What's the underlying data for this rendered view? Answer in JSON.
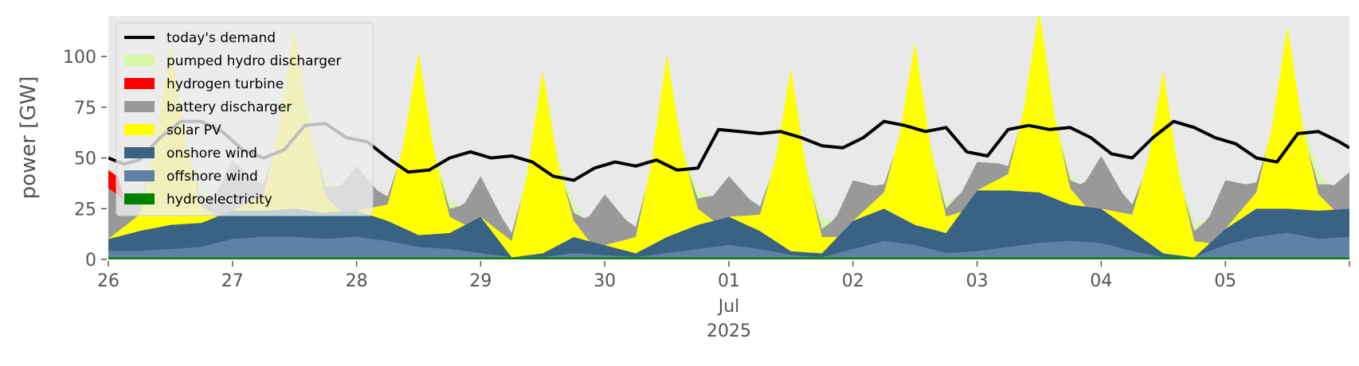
{
  "chart_data": {
    "type": "area",
    "ylabel": "power [GW]",
    "xlabel": "",
    "ylim": [
      0,
      120
    ],
    "xlim": [
      "2025-06-26T00:00",
      "2025-07-06T00:00"
    ],
    "y_ticks": [
      0,
      25,
      50,
      75,
      100
    ],
    "x_ticks": [
      {
        "label": "26",
        "x": "2025-06-26T00:00"
      },
      {
        "label": "27",
        "x": "2025-06-27T00:00"
      },
      {
        "label": "28",
        "x": "2025-06-28T00:00"
      },
      {
        "label": "29",
        "x": "2025-06-29T00:00"
      },
      {
        "label": "30",
        "x": "2025-06-30T00:00"
      },
      {
        "label": "01",
        "x": "2025-07-01T00:00"
      },
      {
        "label": "02",
        "x": "2025-07-02T00:00"
      },
      {
        "label": "03",
        "x": "2025-07-03T00:00"
      },
      {
        "label": "04",
        "x": "2025-07-04T00:00"
      },
      {
        "label": "05",
        "x": "2025-07-05T00:00"
      }
    ],
    "x_sublabels": [
      "Jul",
      "2025"
    ],
    "grid": false,
    "background": "#e9e9e9",
    "legend_position": "top-left",
    "series": [
      {
        "name": "hydroelectricity",
        "color": "#008000",
        "values": [
          [
            0,
            1
          ],
          [
            24,
            1
          ],
          [
            48,
            1
          ],
          [
            72,
            1
          ],
          [
            96,
            1
          ],
          [
            120,
            1
          ],
          [
            144,
            1
          ],
          [
            168,
            1
          ],
          [
            192,
            1
          ],
          [
            216,
            1
          ],
          [
            240,
            1
          ]
        ]
      },
      {
        "name": "offshore wind",
        "color": "#6081a6",
        "values": [
          [
            0,
            3
          ],
          [
            6,
            3
          ],
          [
            12,
            4
          ],
          [
            18,
            5
          ],
          [
            24,
            9
          ],
          [
            30,
            10
          ],
          [
            36,
            10
          ],
          [
            42,
            9
          ],
          [
            48,
            10
          ],
          [
            54,
            8
          ],
          [
            60,
            5
          ],
          [
            66,
            4
          ],
          [
            72,
            2
          ],
          [
            78,
            0
          ],
          [
            84,
            0
          ],
          [
            90,
            2
          ],
          [
            96,
            1
          ],
          [
            102,
            0
          ],
          [
            108,
            2
          ],
          [
            114,
            4
          ],
          [
            120,
            6
          ],
          [
            126,
            4
          ],
          [
            132,
            1
          ],
          [
            138,
            0
          ],
          [
            144,
            4
          ],
          [
            150,
            8
          ],
          [
            156,
            6
          ],
          [
            162,
            2
          ],
          [
            168,
            3
          ],
          [
            174,
            5
          ],
          [
            180,
            7
          ],
          [
            186,
            8
          ],
          [
            192,
            7
          ],
          [
            198,
            3
          ],
          [
            204,
            0
          ],
          [
            210,
            0
          ],
          [
            216,
            6
          ],
          [
            222,
            10
          ],
          [
            228,
            12
          ],
          [
            234,
            9
          ],
          [
            240,
            10
          ]
        ]
      },
      {
        "name": "onshore wind",
        "color": "#3a6282",
        "values": [
          [
            0,
            6
          ],
          [
            6,
            10
          ],
          [
            12,
            12
          ],
          [
            18,
            12
          ],
          [
            24,
            14
          ],
          [
            30,
            13
          ],
          [
            36,
            14
          ],
          [
            42,
            13
          ],
          [
            48,
            13
          ],
          [
            54,
            10
          ],
          [
            60,
            6
          ],
          [
            66,
            8
          ],
          [
            72,
            18
          ],
          [
            78,
            0
          ],
          [
            84,
            2
          ],
          [
            90,
            8
          ],
          [
            96,
            5
          ],
          [
            102,
            2
          ],
          [
            108,
            8
          ],
          [
            114,
            12
          ],
          [
            120,
            14
          ],
          [
            126,
            9
          ],
          [
            132,
            2
          ],
          [
            138,
            2
          ],
          [
            144,
            14
          ],
          [
            150,
            16
          ],
          [
            156,
            10
          ],
          [
            162,
            10
          ],
          [
            168,
            30
          ],
          [
            174,
            28
          ],
          [
            180,
            25
          ],
          [
            186,
            18
          ],
          [
            192,
            17
          ],
          [
            198,
            10
          ],
          [
            204,
            2
          ],
          [
            210,
            0
          ],
          [
            216,
            8
          ],
          [
            222,
            14
          ],
          [
            228,
            12
          ],
          [
            234,
            14
          ],
          [
            240,
            14
          ]
        ]
      },
      {
        "name": "solar PV",
        "color": "#ffff00",
        "values": [
          [
            0,
            0
          ],
          [
            6,
            8
          ],
          [
            9,
            40
          ],
          [
            12,
            90
          ],
          [
            15,
            40
          ],
          [
            18,
            8
          ],
          [
            21,
            0
          ],
          [
            24,
            0
          ],
          [
            30,
            8
          ],
          [
            33,
            40
          ],
          [
            36,
            90
          ],
          [
            39,
            40
          ],
          [
            42,
            8
          ],
          [
            45,
            0
          ],
          [
            48,
            0
          ],
          [
            54,
            8
          ],
          [
            57,
            40
          ],
          [
            60,
            90
          ],
          [
            63,
            40
          ],
          [
            66,
            8
          ],
          [
            69,
            0
          ],
          [
            72,
            0
          ],
          [
            78,
            8
          ],
          [
            81,
            40
          ],
          [
            84,
            90
          ],
          [
            87,
            40
          ],
          [
            90,
            8
          ],
          [
            93,
            0
          ],
          [
            96,
            0
          ],
          [
            102,
            8
          ],
          [
            105,
            40
          ],
          [
            108,
            90
          ],
          [
            111,
            40
          ],
          [
            114,
            8
          ],
          [
            117,
            0
          ],
          [
            120,
            0
          ],
          [
            126,
            8
          ],
          [
            129,
            40
          ],
          [
            132,
            90
          ],
          [
            135,
            40
          ],
          [
            138,
            8
          ],
          [
            141,
            0
          ],
          [
            144,
            0
          ],
          [
            150,
            8
          ],
          [
            153,
            40
          ],
          [
            156,
            90
          ],
          [
            159,
            40
          ],
          [
            162,
            8
          ],
          [
            165,
            0
          ],
          [
            168,
            0
          ],
          [
            174,
            8
          ],
          [
            177,
            40
          ],
          [
            180,
            90
          ],
          [
            183,
            40
          ],
          [
            186,
            8
          ],
          [
            189,
            0
          ],
          [
            192,
            0
          ],
          [
            198,
            8
          ],
          [
            201,
            40
          ],
          [
            204,
            90
          ],
          [
            207,
            40
          ],
          [
            210,
            8
          ],
          [
            213,
            0
          ],
          [
            216,
            0
          ],
          [
            222,
            8
          ],
          [
            225,
            40
          ],
          [
            228,
            90
          ],
          [
            231,
            40
          ],
          [
            234,
            8
          ],
          [
            237,
            0
          ],
          [
            240,
            0
          ]
        ]
      },
      {
        "name": "battery discharger",
        "color": "#999999",
        "values": [
          [
            0,
            25
          ],
          [
            4,
            10
          ],
          [
            8,
            0
          ],
          [
            16,
            0
          ],
          [
            20,
            8
          ],
          [
            24,
            25
          ],
          [
            28,
            10
          ],
          [
            32,
            0
          ],
          [
            40,
            0
          ],
          [
            44,
            10
          ],
          [
            48,
            22
          ],
          [
            52,
            8
          ],
          [
            56,
            0
          ],
          [
            64,
            0
          ],
          [
            68,
            8
          ],
          [
            72,
            20
          ],
          [
            76,
            8
          ],
          [
            80,
            0
          ],
          [
            88,
            0
          ],
          [
            92,
            8
          ],
          [
            96,
            25
          ],
          [
            100,
            10
          ],
          [
            104,
            0
          ],
          [
            112,
            0
          ],
          [
            116,
            10
          ],
          [
            120,
            20
          ],
          [
            124,
            8
          ],
          [
            128,
            0
          ],
          [
            136,
            0
          ],
          [
            140,
            8
          ],
          [
            144,
            20
          ],
          [
            148,
            8
          ],
          [
            152,
            0
          ],
          [
            160,
            0
          ],
          [
            164,
            8
          ],
          [
            168,
            14
          ],
          [
            172,
            8
          ],
          [
            176,
            0
          ],
          [
            184,
            0
          ],
          [
            188,
            8
          ],
          [
            192,
            26
          ],
          [
            196,
            10
          ],
          [
            200,
            0
          ],
          [
            208,
            0
          ],
          [
            212,
            10
          ],
          [
            216,
            24
          ],
          [
            220,
            10
          ],
          [
            224,
            0
          ],
          [
            232,
            0
          ],
          [
            236,
            10
          ],
          [
            240,
            18
          ]
        ]
      },
      {
        "name": "hydrogen turbine",
        "color": "#ff0000",
        "values": [
          [
            0,
            9
          ],
          [
            2,
            9
          ],
          [
            3,
            0
          ],
          [
            240,
            0
          ]
        ]
      },
      {
        "name": "pumped hydro discharger",
        "color": "#d8f7a8",
        "values": [
          [
            0,
            0
          ],
          [
            14,
            0
          ],
          [
            16,
            5
          ],
          [
            18,
            5
          ],
          [
            20,
            0
          ],
          [
            38,
            0
          ],
          [
            40,
            5
          ],
          [
            42,
            5
          ],
          [
            44,
            0
          ],
          [
            62,
            0
          ],
          [
            64,
            4
          ],
          [
            66,
            4
          ],
          [
            68,
            0
          ],
          [
            86,
            0
          ],
          [
            88,
            5
          ],
          [
            90,
            5
          ],
          [
            92,
            0
          ],
          [
            110,
            0
          ],
          [
            112,
            4
          ],
          [
            114,
            4
          ],
          [
            116,
            0
          ],
          [
            134,
            0
          ],
          [
            136,
            5
          ],
          [
            138,
            5
          ],
          [
            140,
            0
          ],
          [
            158,
            0
          ],
          [
            160,
            3
          ],
          [
            162,
            3
          ],
          [
            164,
            0
          ],
          [
            182,
            0
          ],
          [
            184,
            3
          ],
          [
            186,
            3
          ],
          [
            188,
            0
          ],
          [
            206,
            0
          ],
          [
            208,
            4
          ],
          [
            210,
            4
          ],
          [
            212,
            0
          ],
          [
            230,
            0
          ],
          [
            232,
            6
          ],
          [
            234,
            6
          ],
          [
            236,
            0
          ],
          [
            240,
            0
          ]
        ]
      }
    ],
    "line": {
      "name": "today's demand",
      "color": "#000000",
      "values": [
        [
          0,
          50
        ],
        [
          3,
          47
        ],
        [
          6,
          49
        ],
        [
          10,
          60
        ],
        [
          14,
          68
        ],
        [
          18,
          68
        ],
        [
          22,
          63
        ],
        [
          26,
          54
        ],
        [
          30,
          50
        ],
        [
          34,
          54
        ],
        [
          38,
          66
        ],
        [
          42,
          67
        ],
        [
          46,
          60
        ],
        [
          50,
          58
        ],
        [
          54,
          50
        ],
        [
          58,
          43
        ],
        [
          62,
          44
        ],
        [
          66,
          50
        ],
        [
          70,
          53
        ],
        [
          74,
          50
        ],
        [
          78,
          51
        ],
        [
          82,
          48
        ],
        [
          86,
          41
        ],
        [
          90,
          39
        ],
        [
          94,
          45
        ],
        [
          98,
          48
        ],
        [
          102,
          46
        ],
        [
          106,
          49
        ],
        [
          110,
          44
        ],
        [
          114,
          45
        ],
        [
          118,
          64
        ],
        [
          122,
          63
        ],
        [
          126,
          62
        ],
        [
          130,
          63
        ],
        [
          134,
          60
        ],
        [
          138,
          56
        ],
        [
          142,
          55
        ],
        [
          146,
          60
        ],
        [
          150,
          68
        ],
        [
          154,
          66
        ],
        [
          158,
          63
        ],
        [
          162,
          65
        ],
        [
          166,
          53
        ],
        [
          170,
          51
        ],
        [
          174,
          64
        ],
        [
          178,
          66
        ],
        [
          182,
          64
        ],
        [
          186,
          65
        ],
        [
          190,
          60
        ],
        [
          194,
          52
        ],
        [
          198,
          50
        ],
        [
          202,
          60
        ],
        [
          206,
          68
        ],
        [
          210,
          65
        ],
        [
          214,
          60
        ],
        [
          218,
          57
        ],
        [
          222,
          50
        ],
        [
          226,
          48
        ],
        [
          230,
          62
        ],
        [
          234,
          63
        ],
        [
          238,
          58
        ],
        [
          240,
          55
        ]
      ]
    }
  }
}
